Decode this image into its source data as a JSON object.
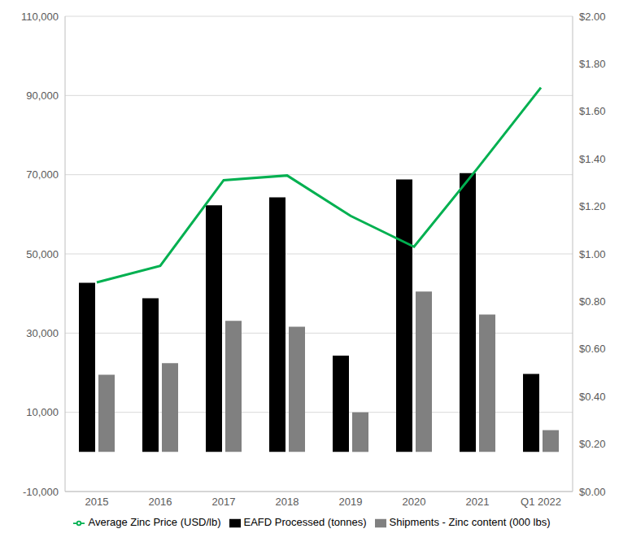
{
  "chart_data": {
    "type": "bar",
    "categories": [
      "2015",
      "2016",
      "2017",
      "2018",
      "2019",
      "2020",
      "2021",
      "Q1 2022"
    ],
    "series": [
      {
        "name": "EAFD Processed (tonnes)",
        "color": "#000000",
        "values": [
          42700,
          38800,
          62300,
          64300,
          24300,
          68800,
          70400,
          19700
        ]
      },
      {
        "name": "Shipments - Zinc content (000 lbs)",
        "color": "#808080",
        "values": [
          19500,
          22400,
          33100,
          31600,
          10000,
          40500,
          34700,
          5500
        ]
      },
      {
        "name": "Average Zinc Price (USD/lb)",
        "color": "#00b050",
        "type": "line",
        "axis": "y2",
        "marker": "none",
        "values": [
          0.88,
          0.95,
          1.31,
          1.33,
          1.16,
          1.03,
          1.36,
          1.7
        ]
      }
    ],
    "ylim": [
      -10000,
      110000
    ],
    "yticks": [
      {
        "value": -10000,
        "label": "-10,000"
      },
      {
        "value": 10000,
        "label": "10,000"
      },
      {
        "value": 30000,
        "label": "30,000"
      },
      {
        "value": 50000,
        "label": "50,000"
      },
      {
        "value": 70000,
        "label": "70,000"
      },
      {
        "value": 90000,
        "label": "90,000"
      },
      {
        "value": 110000,
        "label": "110,000"
      }
    ],
    "y2lim": [
      0,
      2
    ],
    "y2ticks": [
      {
        "value": 0,
        "label": "$0.00"
      },
      {
        "value": 0.2,
        "label": "$0.20"
      },
      {
        "value": 0.4,
        "label": "$0.40"
      },
      {
        "value": 0.6,
        "label": "$0.60"
      },
      {
        "value": 0.8,
        "label": "$0.80"
      },
      {
        "value": 1,
        "label": "$1.00"
      },
      {
        "value": 1.2,
        "label": "$1.20"
      },
      {
        "value": 1.4,
        "label": "$1.40"
      },
      {
        "value": 1.6,
        "label": "$1.60"
      },
      {
        "value": 1.8,
        "label": "$1.80"
      },
      {
        "value": 2,
        "label": "$2.00"
      }
    ],
    "grid": true,
    "legend": "bottom"
  }
}
